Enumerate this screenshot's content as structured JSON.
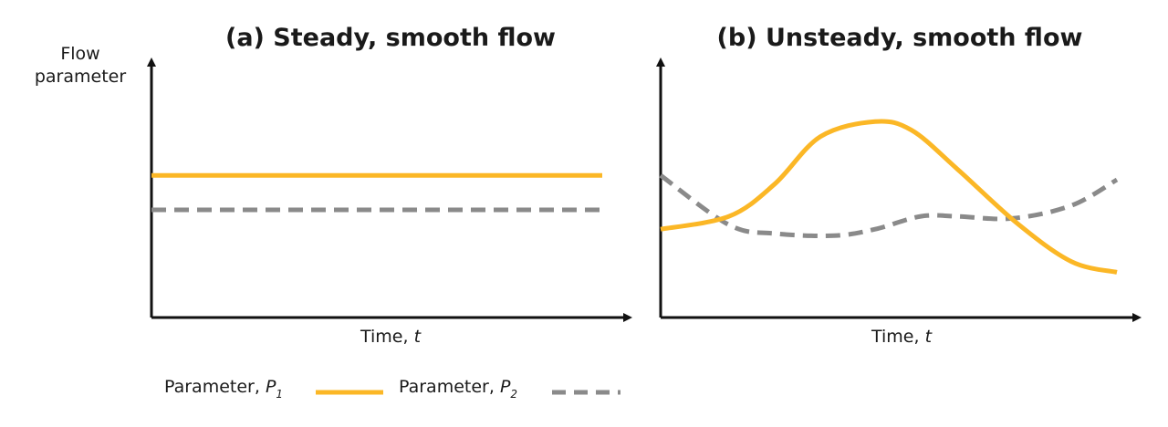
{
  "colors": {
    "p1": "#fbb726",
    "p2": "#8a8a8a",
    "axis": "#111111"
  },
  "y_axis_label": {
    "line1": "Flow",
    "line2": "parameter"
  },
  "legend": {
    "p1": {
      "prefix": "Parameter, ",
      "symbol": "P",
      "subscript": "1"
    },
    "p2": {
      "prefix": "Parameter, ",
      "symbol": "P",
      "subscript": "2"
    }
  },
  "chart_data": [
    {
      "type": "line",
      "title": "(a) Steady, smooth flow",
      "xlabel": {
        "text": "Time, ",
        "var": "t"
      },
      "ylabel": "",
      "xlim": [
        0,
        10
      ],
      "ylim": [
        0,
        10
      ],
      "grid": false,
      "series": [
        {
          "key": "p1",
          "style": "solid",
          "x": [
            0,
            10
          ],
          "y": [
            6.6,
            6.6
          ]
        },
        {
          "key": "p2",
          "style": "dashed",
          "x": [
            0,
            10
          ],
          "y": [
            5.0,
            5.0
          ]
        }
      ]
    },
    {
      "type": "line",
      "title": "(b) Unsteady, smooth flow",
      "xlabel": {
        "text": "Time, ",
        "var": "t"
      },
      "ylabel": "",
      "xlim": [
        0,
        10
      ],
      "ylim": [
        0,
        10
      ],
      "grid": false,
      "series": [
        {
          "key": "p1",
          "style": "solid",
          "x": [
            0,
            1.5,
            2.5,
            3.5,
            4.7,
            5.5,
            6.5,
            7.8,
            9,
            10
          ],
          "y": [
            4.1,
            4.7,
            6.2,
            8.4,
            9.1,
            8.7,
            6.9,
            4.4,
            2.6,
            2.1
          ]
        },
        {
          "key": "p2",
          "style": "dashed",
          "x": [
            0,
            1.5,
            2.5,
            3.8,
            4.7,
            5.7,
            6.5,
            7.7,
            9,
            10
          ],
          "y": [
            6.6,
            4.3,
            3.9,
            3.8,
            4.1,
            4.7,
            4.7,
            4.6,
            5.2,
            6.4
          ]
        }
      ]
    }
  ]
}
